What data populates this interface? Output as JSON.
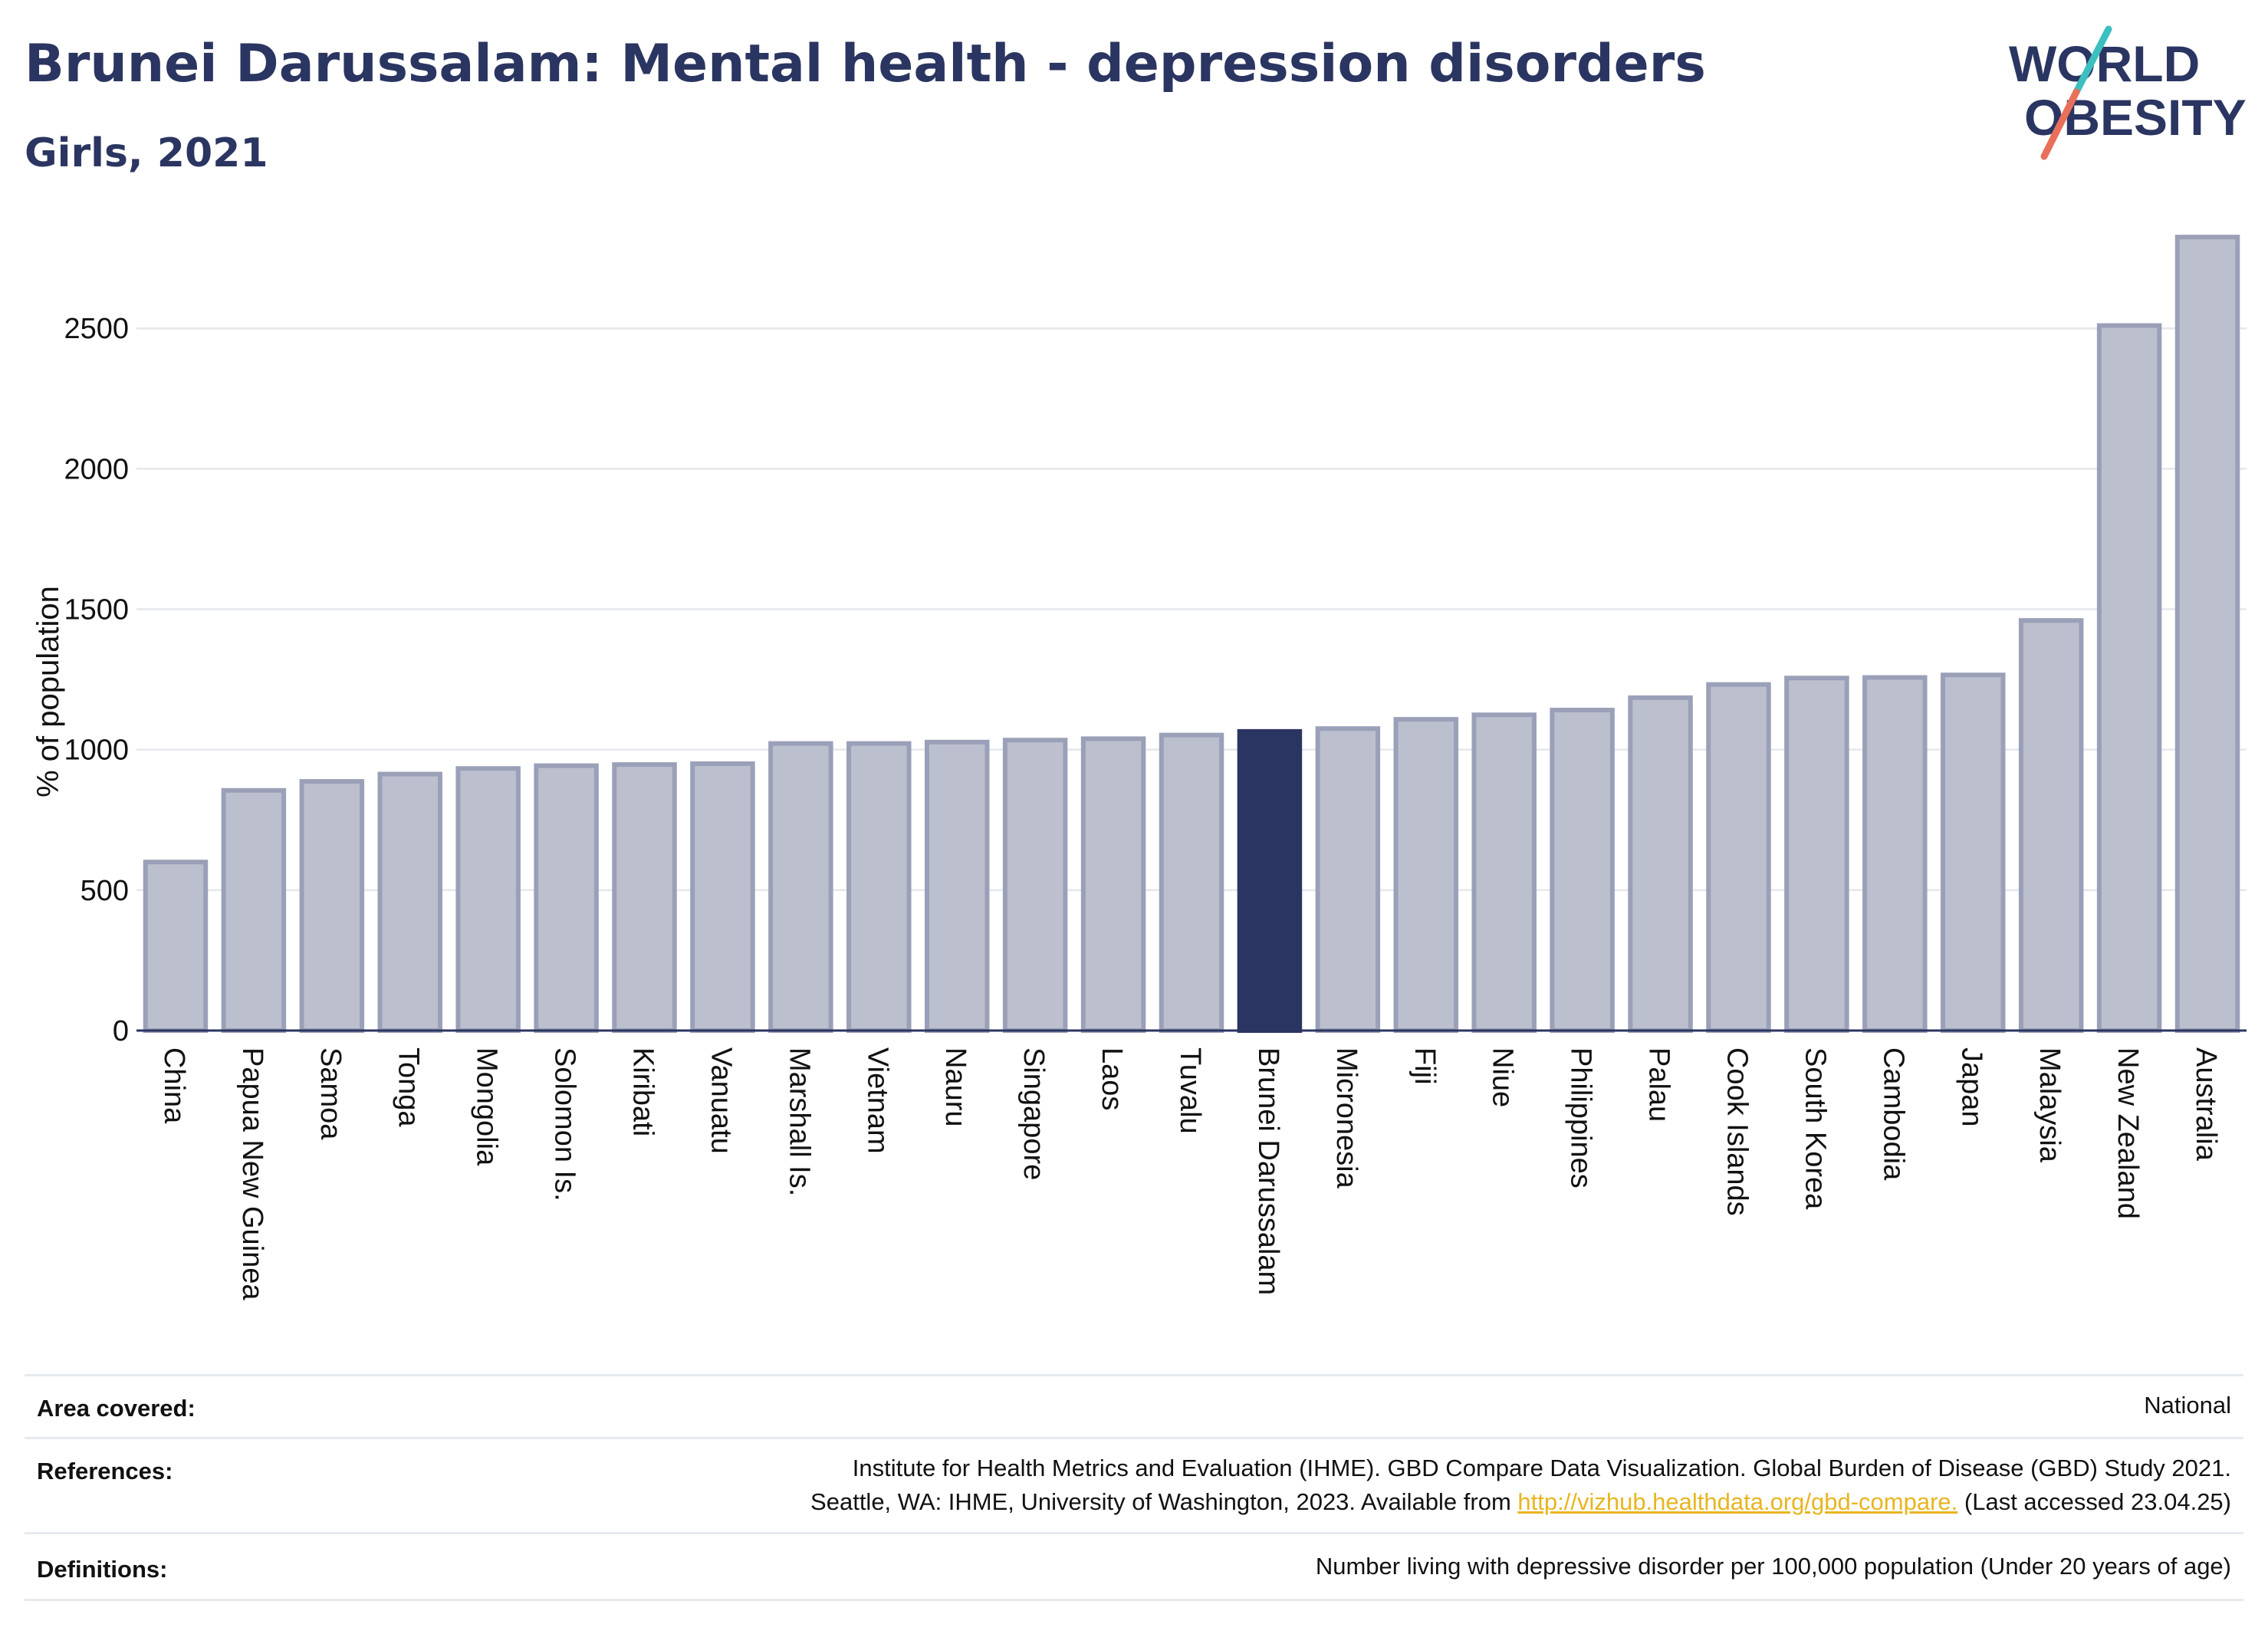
{
  "header": {
    "title": "Brunei Darussalam: Mental health - depression disorders",
    "subtitle": "Girls, 2021"
  },
  "logo": {
    "line1": "WORLD",
    "line2": "OBESITY",
    "colors": {
      "text": "#2b3561",
      "slash_teal": "#3bbfbf",
      "slash_coral": "#e8705a"
    }
  },
  "chart_data": {
    "type": "bar",
    "ylabel": "% of population",
    "xlabel": "",
    "ylim": [
      0,
      2850
    ],
    "yticks": [
      0,
      500,
      1000,
      1500,
      2000,
      2500
    ],
    "grid": true,
    "highlight": "Brunei Darussalam",
    "colors": {
      "bar": "#bcc0ce",
      "bar_edge": "#9aa0b8",
      "highlight": "#2b3561"
    },
    "categories": [
      "China",
      "Papua New Guinea",
      "Samoa",
      "Tonga",
      "Mongolia",
      "Solomon Is.",
      "Kiribati",
      "Vanuatu",
      "Marshall Is.",
      "Vietnam",
      "Nauru",
      "Singapore",
      "Laos",
      "Tuvalu",
      "Brunei Darussalam",
      "Micronesia",
      "Fiji",
      "Niue",
      "Philippines",
      "Palau",
      "Cook Islands",
      "South Korea",
      "Cambodia",
      "Japan",
      "Malaysia",
      "New Zealand",
      "Australia"
    ],
    "values": [
      600,
      855,
      887,
      913,
      933,
      943,
      947,
      950,
      1022,
      1022,
      1027,
      1034,
      1039,
      1052,
      1065,
      1075,
      1108,
      1124,
      1141,
      1185,
      1232,
      1255,
      1257,
      1266,
      1460,
      2510,
      2825
    ]
  },
  "footer": {
    "area_label": "Area covered:",
    "area_value": "National",
    "references_label": "References:",
    "references_line1": "Institute for Health Metrics and Evaluation (IHME). GBD Compare Data Visualization. Global Burden of Disease (GBD) Study 2021.",
    "references_line2_pre": "Seattle, WA: IHME, University of Washington, 2023. Available from ",
    "references_link": "http://vizhub.healthdata.org/gbd-compare.",
    "references_line2_post": " (Last accessed 23.04.25)",
    "definitions_label": "Definitions:",
    "definitions_value": "Number living with depressive disorder per 100,000 population (Under 20 years of age)"
  }
}
